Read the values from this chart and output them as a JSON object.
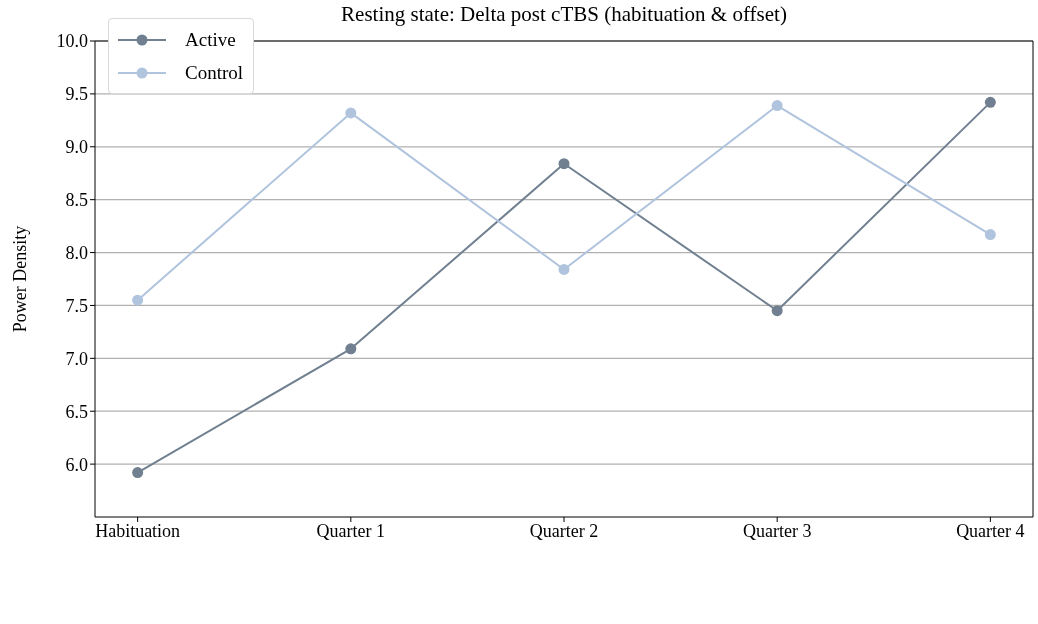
{
  "chart_data": {
    "type": "line",
    "title": "Resting state: Delta post cTBS (habituation & offset)",
    "ylabel": "Power Density",
    "categories": [
      "Habituation",
      "Quarter 1",
      "Quarter 2",
      "Quarter 3",
      "Quarter 4"
    ],
    "series": [
      {
        "name": "Active",
        "color": "#708090",
        "values": [
          5.92,
          7.09,
          8.84,
          7.45,
          9.42
        ]
      },
      {
        "name": "Control",
        "color": "#b0c4de",
        "values": [
          7.55,
          9.32,
          7.84,
          9.39,
          8.17
        ]
      }
    ],
    "ylim": [
      5.5,
      10.0
    ],
    "yticks": [
      {
        "value": 6,
        "label": "6.0"
      },
      {
        "value": 6.5,
        "label": "6.5"
      },
      {
        "value": 7,
        "label": "7.0"
      },
      {
        "value": 7.5,
        "label": "7.5"
      },
      {
        "value": 8,
        "label": "8.0"
      },
      {
        "value": 8.5,
        "label": "8.5"
      },
      {
        "value": 9,
        "label": "9.0"
      },
      {
        "value": 9.5,
        "label": "9.5"
      },
      {
        "value": 10,
        "label": "10.0"
      }
    ],
    "grid": "y",
    "legend": "top left",
    "marker": "circle",
    "line_style": "solid"
  }
}
